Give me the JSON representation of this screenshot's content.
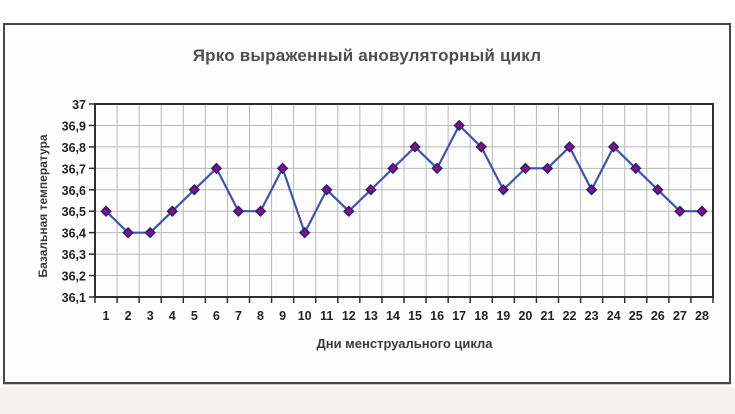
{
  "chart_data": {
    "type": "line",
    "title": "Ярко выраженный ановуляторный цикл",
    "xlabel": "Дни менструального цикла",
    "ylabel": "Базальная температура",
    "categories": [
      1,
      2,
      3,
      4,
      5,
      6,
      7,
      8,
      9,
      10,
      11,
      12,
      13,
      14,
      15,
      16,
      17,
      18,
      19,
      20,
      21,
      22,
      23,
      24,
      25,
      26,
      27,
      28
    ],
    "values": [
      36.5,
      36.4,
      36.4,
      36.5,
      36.6,
      36.7,
      36.5,
      36.5,
      36.7,
      36.4,
      36.6,
      36.5,
      36.6,
      36.7,
      36.8,
      36.7,
      36.9,
      36.8,
      36.6,
      36.7,
      36.7,
      36.8,
      36.6,
      36.8,
      36.7,
      36.6,
      36.5,
      36.5
    ],
    "ylim": [
      36.1,
      37.0
    ],
    "y_tick_step": 0.1,
    "y_tick_labels": [
      "37",
      "36,9",
      "36,8",
      "36,7",
      "36,6",
      "36,5",
      "36,4",
      "36,3",
      "36,2",
      "36,1"
    ],
    "grid": true,
    "legend": "none",
    "colors": {
      "line": "#3d53b8",
      "marker_fill": "#92078f",
      "marker_edge": "#26246c",
      "grid": "#b9b9b9",
      "axis": "#2e2e2e",
      "tick_text": "#1f1f1f",
      "title_text": "#4e4e4e"
    }
  }
}
